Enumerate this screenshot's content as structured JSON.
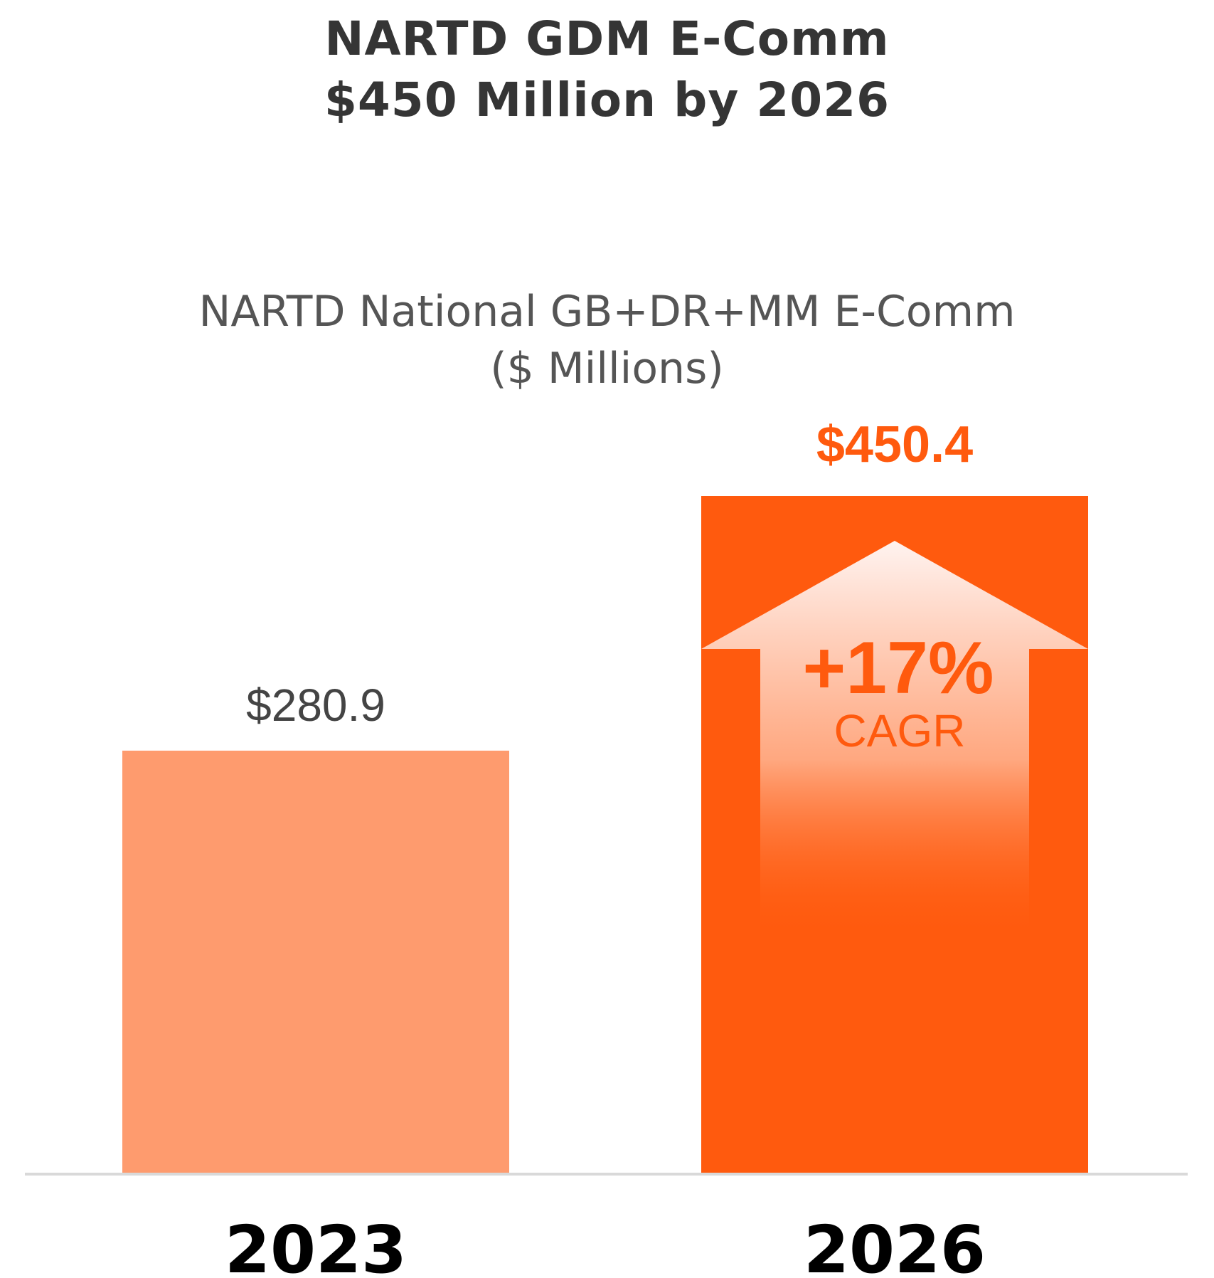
{
  "header": {
    "title_line1": "NARTD GDM E-Comm",
    "title_line2": "$450 Million by 2026"
  },
  "chart_data": {
    "type": "bar",
    "title": "NARTD GDM E-Comm $450 Million by 2026",
    "subtitle_line1": "NARTD National GB+DR+MM E-Comm",
    "subtitle_line2": "($ Millions)",
    "categories": [
      "2023",
      "2026"
    ],
    "values": [
      280.9,
      450.4
    ],
    "data_labels": [
      "$280.9",
      "$450.4"
    ],
    "bar_colors": [
      "#FE9B6E",
      "#FF5A0E"
    ],
    "label_colors": [
      "#444444",
      "#FF5A0E"
    ],
    "xlabel": "",
    "ylabel": "",
    "ylim": [
      0,
      490
    ],
    "grid": false,
    "legend": "none",
    "annotation": {
      "type": "up-arrow",
      "bar_index": 1,
      "value_text": "+17%",
      "label_text": "CAGR",
      "color": "#FF5A0E"
    }
  }
}
